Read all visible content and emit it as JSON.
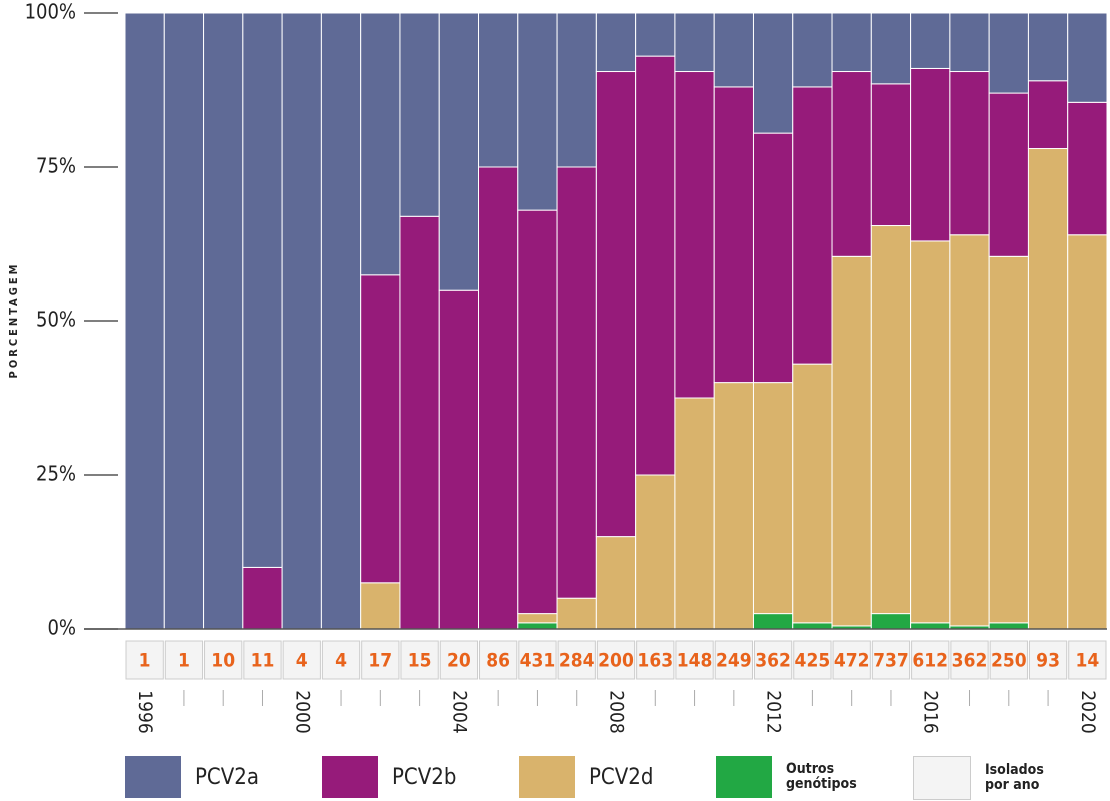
{
  "chart_data": {
    "type": "stacked_bar",
    "y_label": "PORCENTAGEM",
    "categories": [
      "1996",
      null,
      null,
      null,
      "2000",
      null,
      null,
      null,
      "2004",
      null,
      null,
      null,
      "2008",
      null,
      null,
      null,
      "2012",
      null,
      null,
      null,
      "2016",
      null,
      null,
      null,
      "2020"
    ],
    "ylim": [
      0,
      100
    ],
    "yticks": [
      {
        "value": 0,
        "label": "0%"
      },
      {
        "value": 25,
        "label": "25%"
      },
      {
        "value": 50,
        "label": "50%"
      },
      {
        "value": 75,
        "label": "75%"
      },
      {
        "value": 100,
        "label": "100%"
      }
    ],
    "series": [
      {
        "name": "Outros genótipos",
        "color": "#22a844",
        "values": [
          0,
          0,
          0,
          0,
          0,
          0,
          0,
          0,
          0,
          0,
          1,
          0,
          0,
          0,
          0,
          0,
          2.5,
          1,
          0.5,
          2.5,
          1,
          0.5,
          1,
          0,
          0
        ]
      },
      {
        "name": "PCV2d",
        "color": "#d9b36c",
        "values": [
          0,
          0,
          0,
          0,
          0,
          0,
          7.5,
          0,
          0,
          0,
          1.5,
          5,
          15,
          25,
          37.5,
          40,
          37.5,
          42,
          60,
          63,
          62,
          63.5,
          59.5,
          78,
          64
        ]
      },
      {
        "name": "PCV2b",
        "color": "#961b7a",
        "values": [
          0,
          0,
          0,
          10,
          0,
          0,
          50,
          67,
          55,
          75,
          65.5,
          70,
          75.5,
          68,
          53,
          48,
          40.5,
          45,
          30,
          23,
          28,
          26.5,
          26.5,
          11,
          21.5
        ]
      },
      {
        "name": "PCV2a",
        "color": "#5f6a96",
        "values": [
          100,
          100,
          100,
          90,
          100,
          100,
          42.5,
          33,
          45,
          25,
          32,
          25,
          9.5,
          7,
          9.5,
          12,
          19.5,
          12,
          9.5,
          11.5,
          9,
          9.5,
          13,
          11,
          14.5
        ]
      }
    ],
    "legend_order": [
      3,
      2,
      1,
      0
    ],
    "isolates": {
      "name": "Isolados por ano",
      "color": "#f4f4f4",
      "text_color": "#e8631c",
      "values": [
        1,
        1,
        10,
        11,
        4,
        4,
        17,
        15,
        20,
        86,
        431,
        284,
        200,
        163,
        148,
        249,
        362,
        425,
        472,
        737,
        612,
        362,
        250,
        93,
        14
      ]
    }
  }
}
